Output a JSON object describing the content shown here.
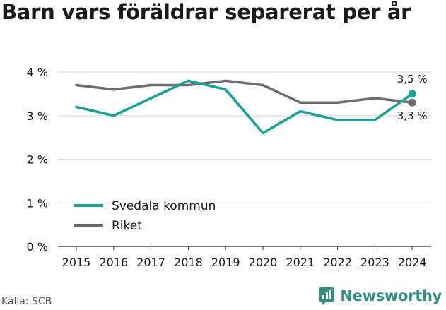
{
  "header": {
    "title": "Barn vars föräldrar separerat per år"
  },
  "footer": {
    "source": "Källa: SCB",
    "brand": "Newsworthy"
  },
  "colors": {
    "svedala": "#14a198",
    "riket": "#6d6d72",
    "brand": "#2f8f83"
  },
  "chart_data": {
    "type": "line",
    "title": "Barn vars föräldrar separerat per år",
    "xlabel": "",
    "ylabel": "",
    "categories": [
      "2015",
      "2016",
      "2017",
      "2018",
      "2019",
      "2020",
      "2021",
      "2022",
      "2023",
      "2024"
    ],
    "y_ticks": [
      0,
      1,
      2,
      3,
      4
    ],
    "y_tick_labels": [
      "0 %",
      "1 %",
      "2 %",
      "3 %",
      "4 %"
    ],
    "ylim": [
      0,
      4
    ],
    "grid": "horizontal",
    "legend_position": "bottom-left",
    "series": [
      {
        "name": "Svedala kommun",
        "color": "#14a198",
        "values": [
          3.2,
          3.0,
          3.4,
          3.8,
          3.6,
          2.6,
          3.1,
          2.9,
          2.9,
          3.5
        ],
        "end_label": "3,5 %"
      },
      {
        "name": "Riket",
        "color": "#6d6d72",
        "values": [
          3.7,
          3.6,
          3.7,
          3.7,
          3.8,
          3.7,
          3.3,
          3.3,
          3.4,
          3.3
        ],
        "end_label": "3,3 %"
      }
    ]
  }
}
